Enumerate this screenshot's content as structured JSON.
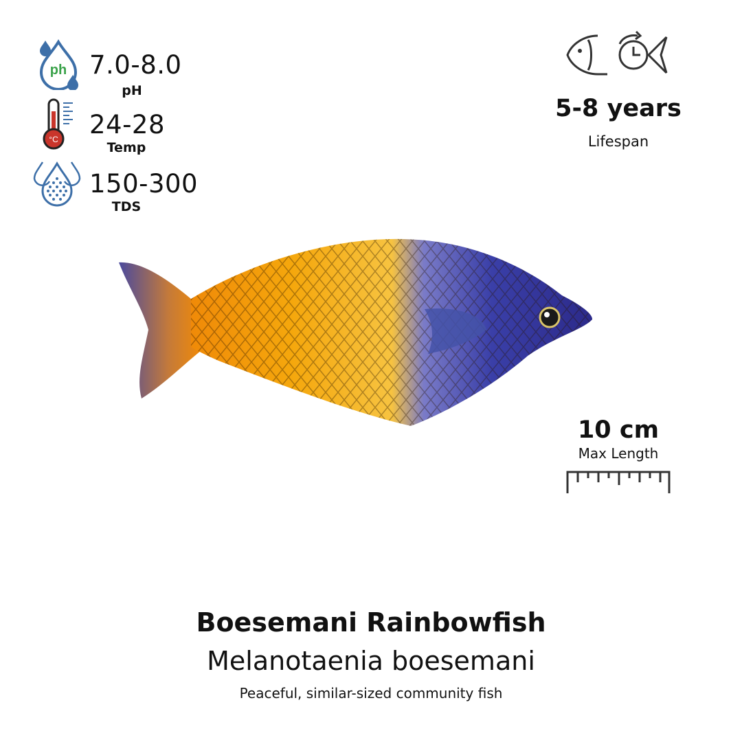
{
  "params": [
    {
      "icon": "ph-drop-icon",
      "value": "7.0-8.0",
      "label": "pH"
    },
    {
      "icon": "thermometer-icon",
      "value": "24-28",
      "label": "Temp"
    },
    {
      "icon": "tds-drops-icon",
      "value": "150-300",
      "label": "TDS"
    }
  ],
  "ph_icon_text": "ph",
  "thermo_icon_text": "°C",
  "lifespan": {
    "icon": "fish-clock-icon",
    "value": "5-8 years",
    "label": "Lifespan"
  },
  "length": {
    "icon": "ruler-icon",
    "value": "10 cm",
    "label": "Max Length"
  },
  "fish": {
    "common_name": "Boesemani Rainbowfish",
    "scientific_name": "Melanotaenia boesemani",
    "description": "Peaceful, similar-sized community fish"
  },
  "colors": {
    "ph_icon_blue": "#3d6fa8",
    "ph_icon_green": "#3aa24a",
    "thermo_red": "#c9352b",
    "fish_orange": "#f5a70c",
    "fish_blue": "#3a3fa8"
  }
}
